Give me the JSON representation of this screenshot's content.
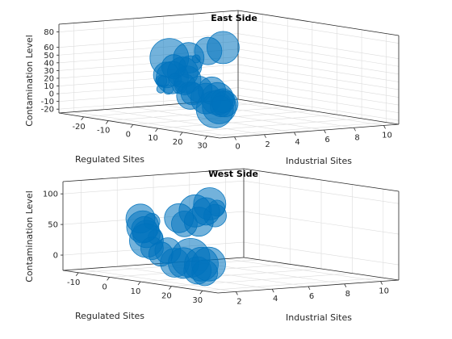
{
  "chart_data": [
    {
      "type": "scatter",
      "subtype": "bubble-3d",
      "title": "East Side",
      "xlabel": "Industrial Sites",
      "ylabel": "Regulated Sites",
      "zlabel": "Contamination Level",
      "xlim": [
        -1,
        11
      ],
      "ylim": [
        -30,
        35
      ],
      "zlim": [
        -25,
        90
      ],
      "xticks": [
        0,
        2,
        4,
        6,
        8,
        10
      ],
      "yticks": [
        -20,
        -10,
        0,
        10,
        20,
        30
      ],
      "zticks": [
        -20,
        -10,
        0,
        10,
        20,
        30,
        40,
        50,
        60,
        80
      ],
      "grid": true,
      "marker_color": "#0072BD",
      "marker_alpha": 0.55,
      "points": [
        {
          "x": 0.2,
          "y": 30,
          "z": 15,
          "s": 16
        },
        {
          "x": 0.4,
          "y": 27,
          "z": 10,
          "s": 13
        },
        {
          "x": 1.2,
          "y": 23,
          "z": 14,
          "s": 15
        },
        {
          "x": 1.3,
          "y": 21,
          "z": 5,
          "s": 21
        },
        {
          "x": 1.5,
          "y": 18,
          "z": 0,
          "s": 23
        },
        {
          "x": 2.0,
          "y": 16,
          "z": 12,
          "s": 20
        },
        {
          "x": 2.3,
          "y": 12,
          "z": 20,
          "s": 17
        },
        {
          "x": 2.4,
          "y": 9,
          "z": 8,
          "s": 19
        },
        {
          "x": 2.6,
          "y": 5,
          "z": 18,
          "s": 16
        },
        {
          "x": 2.8,
          "y": 1,
          "z": 10,
          "s": 14
        },
        {
          "x": 3.0,
          "y": -1,
          "z": 6,
          "s": 17
        },
        {
          "x": 3.3,
          "y": -5,
          "z": 18,
          "s": 13
        },
        {
          "x": 3.6,
          "y": -9,
          "z": 12,
          "s": 8
        },
        {
          "x": 3.8,
          "y": -12,
          "z": 20,
          "s": 8
        },
        {
          "x": 4.0,
          "y": -16,
          "z": 5,
          "s": 6
        },
        {
          "x": 4.2,
          "y": -20,
          "z": 14,
          "s": 7
        },
        {
          "x": 4.5,
          "y": -22,
          "z": 2,
          "s": 5
        },
        {
          "x": 5.0,
          "y": -24,
          "z": 10,
          "s": 7
        },
        {
          "x": 5.2,
          "y": -24,
          "z": 18,
          "s": 16
        },
        {
          "x": 5.4,
          "y": -24,
          "z": 40,
          "s": 24
        },
        {
          "x": 5.6,
          "y": -24,
          "z": 14,
          "s": 20
        },
        {
          "x": 5.7,
          "y": -24,
          "z": 28,
          "s": 15
        },
        {
          "x": 6.3,
          "y": -24,
          "z": 20,
          "s": 19
        },
        {
          "x": 6.6,
          "y": -24,
          "z": 10,
          "s": 17
        },
        {
          "x": 6.7,
          "y": -24,
          "z": 38,
          "s": 19
        },
        {
          "x": 6.8,
          "y": -24,
          "z": 26,
          "s": 14
        },
        {
          "x": 7.2,
          "y": -24,
          "z": 36,
          "s": 5
        },
        {
          "x": 8.0,
          "y": -24,
          "z": 45,
          "s": 17
        },
        {
          "x": 9.0,
          "y": -24,
          "z": 48,
          "s": 20
        }
      ]
    },
    {
      "type": "scatter",
      "subtype": "bubble-3d",
      "title": "West Side",
      "xlabel": "Industrial Sites",
      "ylabel": "Regulated Sites",
      "zlabel": "Contamination Level",
      "xlim": [
        1,
        11
      ],
      "ylim": [
        -15,
        35
      ],
      "zlim": [
        -25,
        120
      ],
      "xticks": [
        2,
        4,
        6,
        8,
        10
      ],
      "yticks": [
        -10,
        0,
        10,
        20,
        30
      ],
      "zticks": [
        0,
        50,
        100
      ],
      "grid": true,
      "marker_color": "#0072BD",
      "marker_alpha": 0.55,
      "points": [
        {
          "x": 1.0,
          "y": 32,
          "z": 20,
          "s": 21
        },
        {
          "x": 1.3,
          "y": 29,
          "z": 3,
          "s": 16
        },
        {
          "x": 1.8,
          "y": 25,
          "z": 13,
          "s": 21
        },
        {
          "x": 2.1,
          "y": 22,
          "z": 0,
          "s": 17
        },
        {
          "x": 2.4,
          "y": 18,
          "z": 17,
          "s": 24
        },
        {
          "x": 2.7,
          "y": 14,
          "z": 5,
          "s": 19
        },
        {
          "x": 2.9,
          "y": 10,
          "z": 2,
          "s": 18
        },
        {
          "x": 3.2,
          "y": 6,
          "z": 18,
          "s": 16
        },
        {
          "x": 3.5,
          "y": 2,
          "z": 9,
          "s": 15
        },
        {
          "x": 3.7,
          "y": -2,
          "z": 15,
          "s": 14
        },
        {
          "x": 3.9,
          "y": -5,
          "z": 25,
          "s": 21
        },
        {
          "x": 4.3,
          "y": -8,
          "z": 40,
          "s": 16
        },
        {
          "x": 4.6,
          "y": -11,
          "z": 55,
          "s": 18
        },
        {
          "x": 4.9,
          "y": -12,
          "z": 40,
          "s": 20
        },
        {
          "x": 5.1,
          "y": -12,
          "z": 28,
          "s": 17
        },
        {
          "x": 5.4,
          "y": -12,
          "z": 48,
          "s": 10
        },
        {
          "x": 5.6,
          "y": -12,
          "z": 22,
          "s": 9
        },
        {
          "x": 6.9,
          "y": -12,
          "z": 50,
          "s": 18
        },
        {
          "x": 7.2,
          "y": -12,
          "z": 40,
          "s": 16
        },
        {
          "x": 7.8,
          "y": -12,
          "z": 60,
          "s": 20
        },
        {
          "x": 8.0,
          "y": -12,
          "z": 42,
          "s": 18
        },
        {
          "x": 8.4,
          "y": -12,
          "z": 58,
          "s": 17
        },
        {
          "x": 8.6,
          "y": -12,
          "z": 70,
          "s": 20
        },
        {
          "x": 8.9,
          "y": -12,
          "z": 50,
          "s": 14
        },
        {
          "x": 9.0,
          "y": -12,
          "z": 62,
          "s": 10
        }
      ]
    }
  ]
}
